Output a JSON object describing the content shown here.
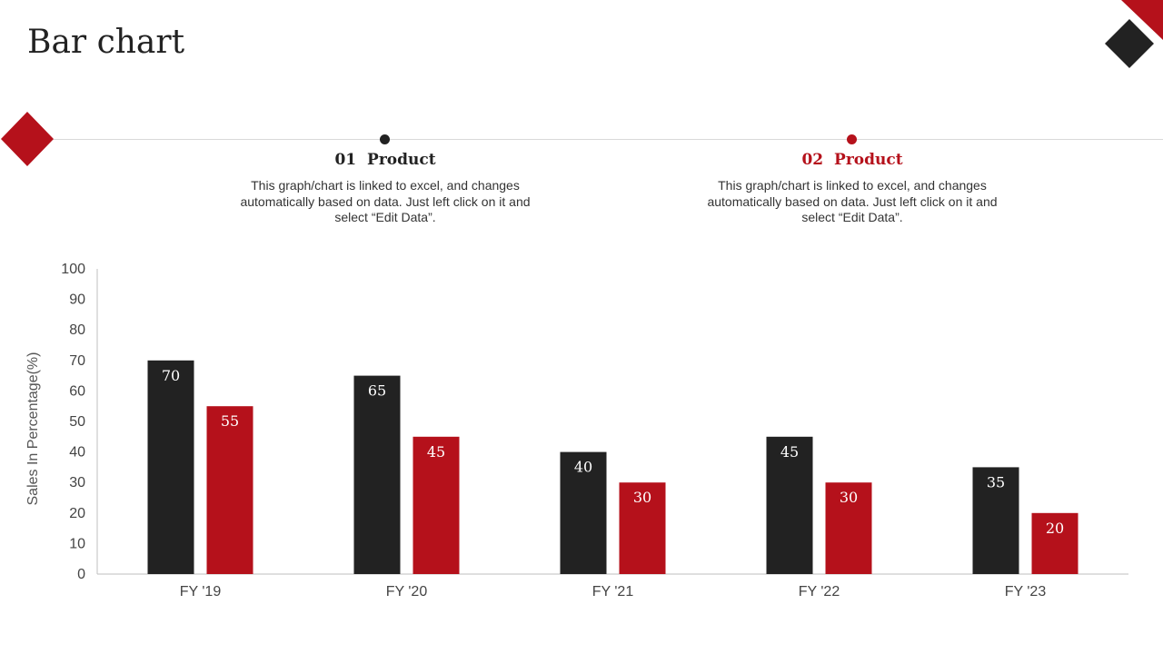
{
  "slide": {
    "title": "Bar chart"
  },
  "colors": {
    "dark": "#222222",
    "red": "#b5111b"
  },
  "products": [
    {
      "number": "01",
      "label": "Product",
      "description": "This graph/chart is linked to excel, and changes automatically based on data. Just left click on it and select “Edit Data”."
    },
    {
      "number": "02",
      "label": "Product",
      "description": "This graph/chart is linked to excel, and changes automatically based on data. Just left click on it and select “Edit Data”."
    }
  ],
  "chart_data": {
    "type": "bar",
    "categories": [
      "FY '19",
      "FY '20",
      "FY '21",
      "FY '22",
      "FY '23"
    ],
    "series": [
      {
        "values": [
          70,
          65,
          40,
          45,
          35
        ],
        "color": "#222222"
      },
      {
        "values": [
          55,
          45,
          30,
          30,
          20
        ],
        "color": "#b5111b"
      }
    ],
    "ylabel": "Sales In Percentage(%)",
    "ylim": [
      0,
      100
    ],
    "yticks": [
      0,
      10,
      20,
      30,
      40,
      50,
      60,
      70,
      80,
      90,
      100
    ],
    "grid": false,
    "data_labels": true
  }
}
